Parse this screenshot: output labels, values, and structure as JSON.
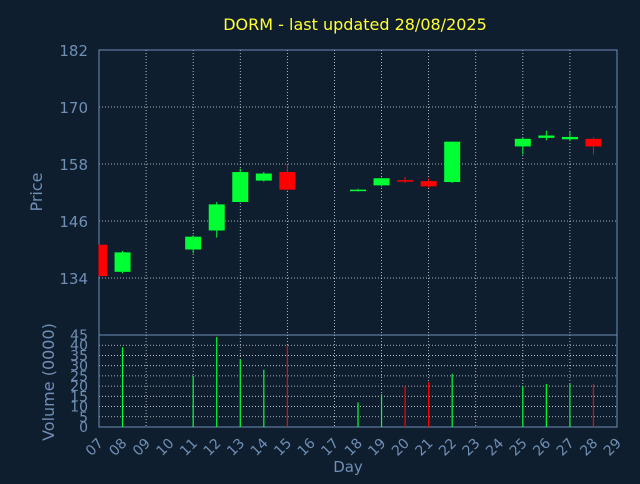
{
  "colors": {
    "background": "#0f1e2e",
    "title": "#ffff33",
    "axis_text": "#6f8fb5",
    "grid": "#ffffff",
    "up": "#00ff33",
    "down": "#ff0000"
  },
  "chart_data": [
    {
      "type": "candlestick",
      "title": "DORM - last updated 28/08/2025",
      "ylabel": "Price",
      "ylim": [
        122,
        182
      ],
      "y_ticks": [
        182,
        170,
        158,
        146,
        134
      ],
      "grid": true,
      "candles": [
        {
          "x": 7,
          "open": 141.0,
          "high": 141.0,
          "low": 134.4,
          "close": 134.4
        },
        {
          "x": 8,
          "open": 135.3,
          "high": 139.7,
          "low": 135.0,
          "close": 139.4
        },
        {
          "x": 11,
          "open": 140.0,
          "high": 143.0,
          "low": 139.2,
          "close": 142.7
        },
        {
          "x": 12,
          "open": 144.0,
          "high": 150.0,
          "low": 142.5,
          "close": 149.5
        },
        {
          "x": 13,
          "open": 150.0,
          "high": 157.0,
          "low": 150.0,
          "close": 156.3
        },
        {
          "x": 14,
          "open": 154.5,
          "high": 156.3,
          "low": 154.3,
          "close": 156.0
        },
        {
          "x": 15,
          "open": 156.3,
          "high": 157.9,
          "low": 152.4,
          "close": 152.6
        },
        {
          "x": 18,
          "open": 152.5,
          "high": 152.8,
          "low": 152.2,
          "close": 152.6
        },
        {
          "x": 19,
          "open": 153.5,
          "high": 155.1,
          "low": 153.3,
          "close": 155.0
        },
        {
          "x": 20,
          "open": 154.6,
          "high": 155.3,
          "low": 154.0,
          "close": 154.4
        },
        {
          "x": 21,
          "open": 154.4,
          "high": 155.0,
          "low": 153.0,
          "close": 153.3
        },
        {
          "x": 22,
          "open": 154.2,
          "high": 162.7,
          "low": 154.0,
          "close": 162.7
        },
        {
          "x": 25,
          "open": 161.7,
          "high": 163.5,
          "low": 160.0,
          "close": 163.3
        },
        {
          "x": 26,
          "open": 163.5,
          "high": 165.0,
          "low": 163.0,
          "close": 164.0
        },
        {
          "x": 27,
          "open": 163.2,
          "high": 164.8,
          "low": 162.8,
          "close": 163.7
        },
        {
          "x": 28,
          "open": 163.3,
          "high": 163.6,
          "low": 160.0,
          "close": 161.7
        }
      ]
    },
    {
      "type": "bar",
      "ylabel": "Volume (0000)",
      "xlabel": "Day",
      "ylim": [
        0,
        45
      ],
      "y_ticks": [
        45,
        40,
        35,
        30,
        25,
        20,
        15,
        10,
        5,
        0
      ],
      "x_ticks": [
        "07",
        "08",
        "09",
        "10",
        "11",
        "12",
        "13",
        "14",
        "15",
        "16",
        "17",
        "18",
        "19",
        "20",
        "21",
        "22",
        "23",
        "24",
        "25",
        "26",
        "27",
        "28",
        "29"
      ],
      "bars": [
        {
          "x": 8,
          "value": 39,
          "dir": "up"
        },
        {
          "x": 11,
          "value": 25,
          "dir": "up"
        },
        {
          "x": 12,
          "value": 44,
          "dir": "up"
        },
        {
          "x": 13,
          "value": 33,
          "dir": "up"
        },
        {
          "x": 14,
          "value": 28,
          "dir": "up"
        },
        {
          "x": 15,
          "value": 40,
          "dir": "down"
        },
        {
          "x": 18,
          "value": 12,
          "dir": "up"
        },
        {
          "x": 19,
          "value": 16,
          "dir": "up"
        },
        {
          "x": 20,
          "value": 20,
          "dir": "down"
        },
        {
          "x": 21,
          "value": 22,
          "dir": "down"
        },
        {
          "x": 22,
          "value": 26,
          "dir": "up"
        },
        {
          "x": 25,
          "value": 20,
          "dir": "up"
        },
        {
          "x": 26,
          "value": 21,
          "dir": "up"
        },
        {
          "x": 27,
          "value": 21,
          "dir": "up"
        },
        {
          "x": 28,
          "value": 21,
          "dir": "down"
        }
      ]
    }
  ]
}
